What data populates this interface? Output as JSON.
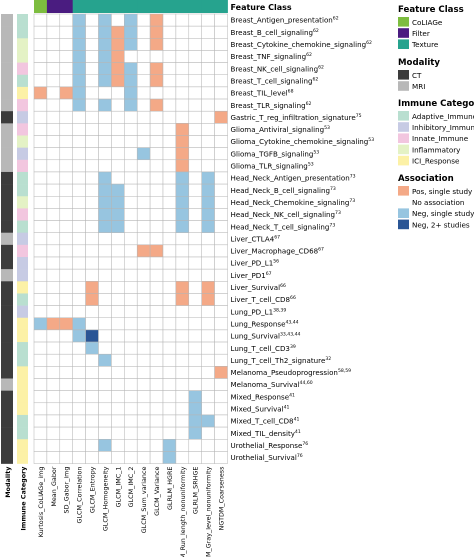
{
  "chart_data": {
    "type": "heatmap",
    "feature_class_label": "Feature Class",
    "modality_axis_label": "Modality",
    "immune_axis_label": "Immune Category",
    "rows": [
      "Breast_Antigen_presentation",
      "Breast_B_cell_signaling",
      "Breast_Cytokine_chemokine_signaling",
      "Breast_TNF_signaling",
      "Breast_NK_cell_signaling",
      "Breast_T_cell_signaling",
      "Breast_TIL_level",
      "Breast_TLR_signaling",
      "Gastric_T_reg_infiltration_signature",
      "Glioma_Antiviral_signaling",
      "Glioma_Cytokine_chemokine_signaling",
      "Glioma_TGFB_signaling",
      "Glioma_TLR_signaling",
      "Head_Neck_Antigen_presentation",
      "Head_Neck_B_cell_signaling",
      "Head_Neck_Chemokine_signaling",
      "Head_Neck_NK_cell_signaling",
      "Head_Neck_T_cell_signaling",
      "Liver_CTLA4",
      "Liver_Macrophage_CD68",
      "Liver_PD_L1",
      "Liver_PD1",
      "Liver_Survival",
      "Liver_T_cell_CD8",
      "Lung_PD_L1",
      "Lung_Response",
      "Lung_Survival",
      "Lung_T_cell_CD3",
      "Lung_T_cell_Th2_signature",
      "Melanoma_Pseudoprogression",
      "Melanoma_Survival",
      "Mixed_Response",
      "Mixed_Survival",
      "Mixed_T_cell_CD8",
      "Mixed_TIL_density",
      "Urothelial_Response",
      "Urothelial_Survival"
    ],
    "row_refs": [
      "62",
      "62",
      "62",
      "62",
      "62",
      "62",
      "68",
      "62",
      "75",
      "53",
      "53",
      "53",
      "53",
      "73",
      "73",
      "73",
      "73",
      "73",
      "67",
      "67",
      "56",
      "67",
      "66",
      "66",
      "38,39",
      "43,44",
      "33,43,44",
      "39",
      "32",
      "58,59",
      "44,60",
      "41",
      "41",
      "41",
      "41",
      "76",
      "76"
    ],
    "columns": [
      "Kurtosis_CoLlAGe_img",
      "Mean_Gabor",
      "SD_Gabor_img",
      "GLCM_Correlation",
      "GLCM_Entropy",
      "GLCM_Homogeneity",
      "GLCM_IMC_1",
      "GLCM_IMC_2",
      "GLCM_Sum_variance",
      "GLCM_Variance",
      "GLRLM_HGRE",
      "GLRLM_Run_length_nonuniformity",
      "GLRLM_SRHGE",
      "GLSZM_Gray_level_nonuniformity",
      "NGTDM_Coarseness"
    ],
    "column_feature_class": [
      "CoLlAGe",
      "Filter",
      "Filter",
      "Texture",
      "Texture",
      "Texture",
      "Texture",
      "Texture",
      "Texture",
      "Texture",
      "Texture",
      "Texture",
      "Texture",
      "Texture",
      "Texture"
    ],
    "row_modality": [
      "MRI",
      "MRI",
      "MRI",
      "MRI",
      "MRI",
      "MRI",
      "MRI",
      "MRI",
      "CT",
      "MRI",
      "MRI",
      "MRI",
      "MRI",
      "CT",
      "CT",
      "CT",
      "CT",
      "CT",
      "MRI",
      "CT",
      "CT",
      "MRI",
      "CT",
      "CT",
      "CT",
      "CT",
      "CT",
      "CT",
      "CT",
      "CT",
      "MRI",
      "CT",
      "CT",
      "CT",
      "CT",
      "CT",
      "CT"
    ],
    "row_immune_category": [
      "Adaptive_Immune",
      "Adaptive_Immune",
      "Inflammatory",
      "Inflammatory",
      "Innate_Immune",
      "Adaptive_Immune",
      "ICI_Response",
      "Innate_Immune",
      "Inhibitory_Immune",
      "Innate_Immune",
      "Inflammatory",
      "Inhibitory_Immune",
      "Innate_Immune",
      "Adaptive_Immune",
      "Adaptive_Immune",
      "Inflammatory",
      "Innate_Immune",
      "Adaptive_Immune",
      "Inhibitory_Immune",
      "Innate_Immune",
      "Inhibitory_Immune",
      "Inhibitory_Immune",
      "ICI_Response",
      "Adaptive_Immune",
      "Inhibitory_Immune",
      "ICI_Response",
      "ICI_Response",
      "Adaptive_Immune",
      "Adaptive_Immune",
      "ICI_Response",
      "ICI_Response",
      "ICI_Response",
      "ICI_Response",
      "Adaptive_Immune",
      "Adaptive_Immune",
      "ICI_Response",
      "ICI_Response"
    ],
    "cell_codes": {
      "0": "No association",
      "1": "Pos, single study",
      "2": "Neg, single study",
      "3": "Neg, 2+ studies"
    },
    "matrix": [
      [
        0,
        0,
        0,
        2,
        0,
        2,
        0,
        2,
        0,
        1,
        0,
        0,
        0,
        0,
        0
      ],
      [
        0,
        0,
        0,
        2,
        0,
        2,
        1,
        2,
        0,
        1,
        0,
        0,
        0,
        0,
        0
      ],
      [
        0,
        0,
        0,
        2,
        0,
        2,
        1,
        2,
        0,
        1,
        0,
        0,
        0,
        0,
        0
      ],
      [
        0,
        0,
        0,
        2,
        0,
        2,
        1,
        0,
        0,
        0,
        0,
        0,
        0,
        0,
        0
      ],
      [
        0,
        0,
        0,
        2,
        0,
        2,
        1,
        2,
        0,
        1,
        0,
        0,
        0,
        0,
        0
      ],
      [
        0,
        0,
        0,
        2,
        0,
        2,
        1,
        2,
        0,
        1,
        0,
        0,
        0,
        0,
        0
      ],
      [
        1,
        0,
        1,
        2,
        0,
        0,
        0,
        2,
        0,
        0,
        0,
        0,
        0,
        0,
        0
      ],
      [
        0,
        0,
        0,
        2,
        0,
        2,
        0,
        2,
        0,
        1,
        0,
        0,
        0,
        0,
        0
      ],
      [
        0,
        0,
        0,
        0,
        0,
        0,
        0,
        0,
        0,
        0,
        0,
        0,
        0,
        0,
        1
      ],
      [
        0,
        0,
        0,
        0,
        0,
        0,
        0,
        0,
        0,
        0,
        0,
        1,
        0,
        0,
        0
      ],
      [
        0,
        0,
        0,
        0,
        0,
        0,
        0,
        0,
        0,
        0,
        0,
        1,
        0,
        0,
        0
      ],
      [
        0,
        0,
        0,
        0,
        0,
        0,
        0,
        0,
        2,
        0,
        0,
        1,
        0,
        0,
        0
      ],
      [
        0,
        0,
        0,
        0,
        0,
        0,
        0,
        0,
        0,
        0,
        0,
        1,
        0,
        0,
        0
      ],
      [
        0,
        0,
        0,
        0,
        0,
        2,
        0,
        0,
        0,
        0,
        0,
        2,
        0,
        2,
        0
      ],
      [
        0,
        0,
        0,
        0,
        0,
        2,
        2,
        0,
        0,
        0,
        0,
        2,
        0,
        2,
        0
      ],
      [
        0,
        0,
        0,
        0,
        0,
        2,
        2,
        0,
        0,
        0,
        0,
        2,
        0,
        2,
        0
      ],
      [
        0,
        0,
        0,
        0,
        0,
        2,
        2,
        0,
        0,
        0,
        0,
        2,
        0,
        2,
        0
      ],
      [
        0,
        0,
        0,
        0,
        0,
        2,
        2,
        0,
        0,
        0,
        0,
        2,
        0,
        2,
        0
      ],
      [
        0,
        0,
        0,
        0,
        0,
        0,
        0,
        0,
        0,
        0,
        0,
        0,
        0,
        0,
        0
      ],
      [
        0,
        0,
        0,
        0,
        0,
        0,
        0,
        0,
        1,
        1,
        0,
        0,
        0,
        0,
        0
      ],
      [
        0,
        0,
        0,
        0,
        0,
        0,
        0,
        0,
        0,
        0,
        0,
        0,
        0,
        0,
        0
      ],
      [
        0,
        0,
        0,
        0,
        0,
        0,
        0,
        0,
        0,
        0,
        0,
        0,
        0,
        0,
        0
      ],
      [
        0,
        0,
        0,
        0,
        1,
        0,
        0,
        0,
        0,
        0,
        0,
        1,
        0,
        1,
        0
      ],
      [
        0,
        0,
        0,
        0,
        1,
        0,
        0,
        0,
        0,
        0,
        0,
        1,
        0,
        1,
        0
      ],
      [
        0,
        0,
        0,
        0,
        0,
        0,
        0,
        0,
        0,
        0,
        0,
        0,
        0,
        0,
        0
      ],
      [
        2,
        1,
        1,
        2,
        0,
        0,
        0,
        0,
        0,
        0,
        0,
        0,
        0,
        0,
        0
      ],
      [
        0,
        0,
        0,
        2,
        3,
        0,
        0,
        0,
        0,
        0,
        0,
        0,
        0,
        0,
        0
      ],
      [
        0,
        0,
        0,
        0,
        2,
        0,
        0,
        0,
        0,
        0,
        0,
        0,
        0,
        0,
        0
      ],
      [
        0,
        0,
        0,
        0,
        0,
        2,
        0,
        0,
        0,
        0,
        0,
        0,
        0,
        0,
        0
      ],
      [
        0,
        0,
        0,
        0,
        0,
        0,
        0,
        0,
        0,
        0,
        0,
        0,
        0,
        0,
        1
      ],
      [
        0,
        0,
        0,
        0,
        0,
        0,
        0,
        0,
        0,
        0,
        0,
        0,
        0,
        0,
        0
      ],
      [
        0,
        0,
        0,
        0,
        0,
        0,
        0,
        0,
        0,
        0,
        0,
        0,
        2,
        0,
        0
      ],
      [
        0,
        0,
        0,
        0,
        0,
        0,
        0,
        0,
        0,
        0,
        0,
        0,
        2,
        0,
        0
      ],
      [
        0,
        0,
        0,
        0,
        0,
        0,
        0,
        0,
        0,
        0,
        0,
        0,
        2,
        2,
        0
      ],
      [
        0,
        0,
        0,
        0,
        0,
        0,
        0,
        0,
        0,
        0,
        0,
        0,
        2,
        0,
        0
      ],
      [
        0,
        0,
        0,
        0,
        0,
        2,
        0,
        0,
        0,
        0,
        2,
        0,
        0,
        0,
        0
      ],
      [
        0,
        0,
        0,
        0,
        0,
        0,
        0,
        0,
        0,
        0,
        2,
        0,
        0,
        0,
        0
      ]
    ],
    "legend": {
      "feature_class": {
        "title": "Feature Class",
        "items": [
          {
            "label": "CoLIAGe",
            "color": "#7dbd3f"
          },
          {
            "label": "Filter",
            "color": "#4a1c80"
          },
          {
            "label": "Texture",
            "color": "#26a38e"
          }
        ]
      },
      "modality": {
        "title": "Modality",
        "items": [
          {
            "label": "CT",
            "color": "#3c3c3c"
          },
          {
            "label": "MRI",
            "color": "#b8b8b8"
          }
        ]
      },
      "immune_category": {
        "title": "Immune Category",
        "items": [
          {
            "label": "Adaptive_Immune",
            "color": "#b9dfd0"
          },
          {
            "label": "Inhibitory_Immune",
            "color": "#c7cbe4"
          },
          {
            "label": "Innate_Immune",
            "color": "#f2c6df"
          },
          {
            "label": "Inflammatory",
            "color": "#e4f2c5"
          },
          {
            "label": "ICI_Response",
            "color": "#fcf1a6"
          }
        ]
      },
      "association": {
        "title": "Association",
        "items": [
          {
            "label": "Pos, single study",
            "color": "#f4a987"
          },
          {
            "label": "No association",
            "color": "#ffffff"
          },
          {
            "label": "Neg, single study",
            "color": "#97c5e0"
          },
          {
            "label": "Neg, 2+ studies",
            "color": "#2a5595"
          }
        ]
      }
    },
    "colors": {
      "grid": "#b5b5b5"
    }
  }
}
